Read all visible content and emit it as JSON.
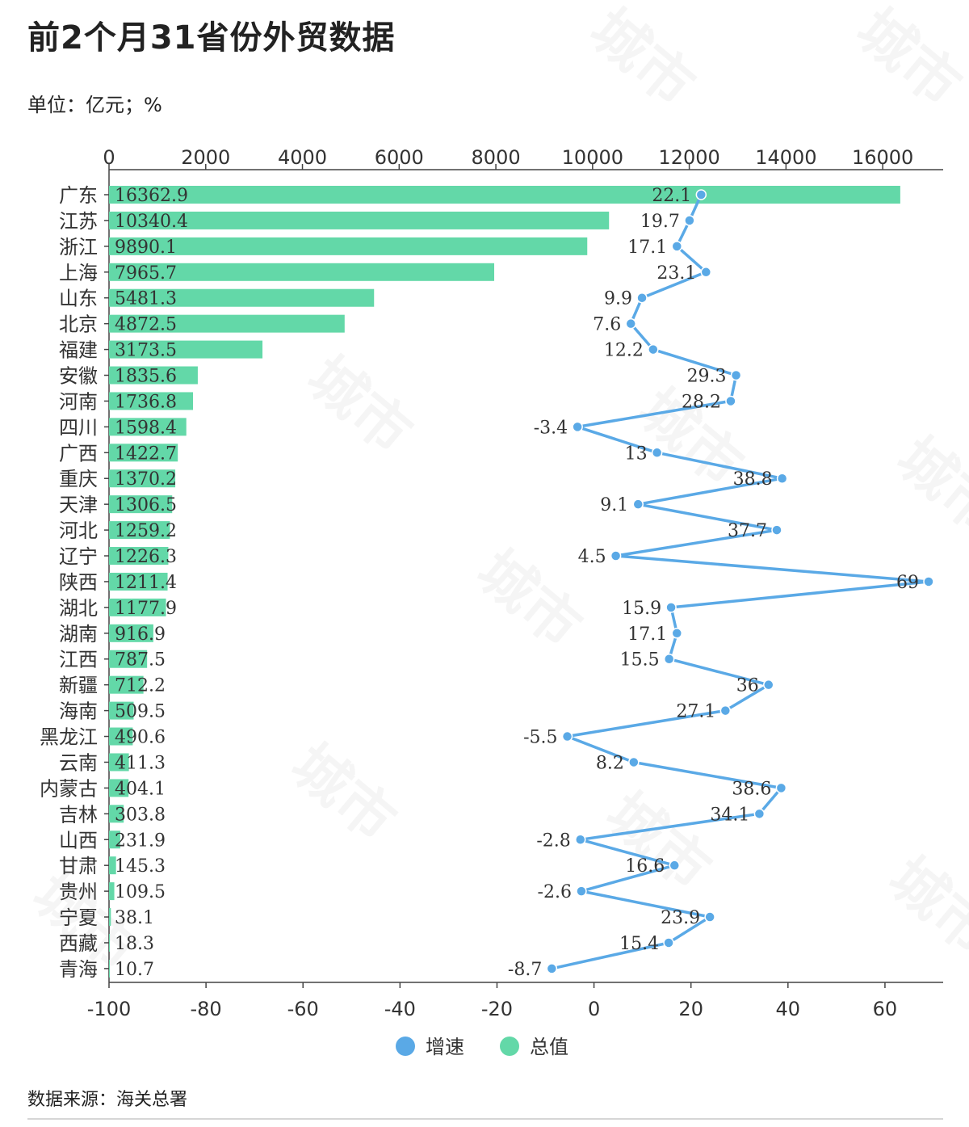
{
  "title": "前2个月31省份外贸数据",
  "unit": "单位：亿元；%",
  "source": "数据来源：海关总署",
  "legend": [
    {
      "name": "增速",
      "color": "#5aa9e6"
    },
    {
      "name": "总值",
      "color": "#63d8a8"
    }
  ],
  "chart_data": {
    "type": "bar",
    "categories": [
      "广东",
      "江苏",
      "浙江",
      "上海",
      "山东",
      "北京",
      "福建",
      "安徽",
      "河南",
      "四川",
      "广西",
      "重庆",
      "天津",
      "河北",
      "辽宁",
      "陕西",
      "湖北",
      "湖南",
      "江西",
      "新疆",
      "海南",
      "黑龙江",
      "云南",
      "内蒙古",
      "吉林",
      "山西",
      "甘肃",
      "贵州",
      "宁夏",
      "西藏",
      "青海"
    ],
    "series": [
      {
        "name": "总值",
        "type": "bar",
        "color": "#63d8a8",
        "values": [
          16362.9,
          10340.4,
          9890.1,
          7965.7,
          5481.3,
          4872.5,
          3173.5,
          1835.6,
          1736.8,
          1598.4,
          1422.7,
          1370.2,
          1306.5,
          1259.2,
          1226.3,
          1211.4,
          1177.9,
          916.9,
          787.5,
          712.2,
          509.5,
          490.6,
          411.3,
          404.1,
          303.8,
          231.9,
          145.3,
          109.5,
          38.1,
          18.3,
          10.7
        ],
        "labels": [
          "16362.9",
          "10340.4",
          "9890.1",
          "7965.7",
          "5481.3",
          "4872.5",
          "3173.5",
          "1835.6",
          "1736.8",
          "1598.4",
          "1422.7",
          "1370.2",
          "1306.5",
          "1259.2",
          "1226.3",
          "1211.4",
          "1177.9",
          "916.9",
          "787.5",
          "712.2",
          "509.5",
          "490.6",
          "411.3",
          "404.1",
          "303.8",
          "231.9",
          "145.3",
          "109.5",
          "38.1",
          "18.3",
          "10.7"
        ]
      },
      {
        "name": "增速",
        "type": "line",
        "color": "#5aa9e6",
        "values": [
          22.1,
          19.7,
          17.1,
          23.1,
          9.9,
          7.6,
          12.2,
          29.3,
          28.2,
          -3.4,
          13,
          38.8,
          9.1,
          37.7,
          4.5,
          69,
          15.9,
          17.1,
          15.5,
          36,
          27.1,
          -5.5,
          8.2,
          38.6,
          34.1,
          -2.8,
          16.6,
          -2.6,
          23.9,
          15.4,
          -8.7
        ],
        "labels": [
          "22.1",
          "19.7",
          "17.1",
          "23.1",
          "9.9",
          "7.6",
          "12.2",
          "29.3",
          "28.2",
          "-3.4",
          "13",
          "38.8",
          "9.1",
          "37.7",
          "4.5",
          "69",
          "15.9",
          "17.1",
          "15.5",
          "36",
          "27.1",
          "-5.5",
          "8.2",
          "38.6",
          "34.1",
          "-2.8",
          "16.6",
          "-2.6",
          "23.9",
          "15.4",
          "-8.7"
        ]
      }
    ],
    "top_axis": {
      "min": 0,
      "max": 17250,
      "ticks": [
        "0",
        "2000",
        "4000",
        "6000",
        "8000",
        "10000",
        "12000",
        "14000",
        "16000"
      ]
    },
    "bottom_axis": {
      "min": -100,
      "max": 72,
      "ticks": [
        "-100",
        "-80",
        "-60",
        "-40",
        "-20",
        "0",
        "20",
        "40",
        "60"
      ]
    },
    "grid": false,
    "legend_position": "bottom-center"
  }
}
